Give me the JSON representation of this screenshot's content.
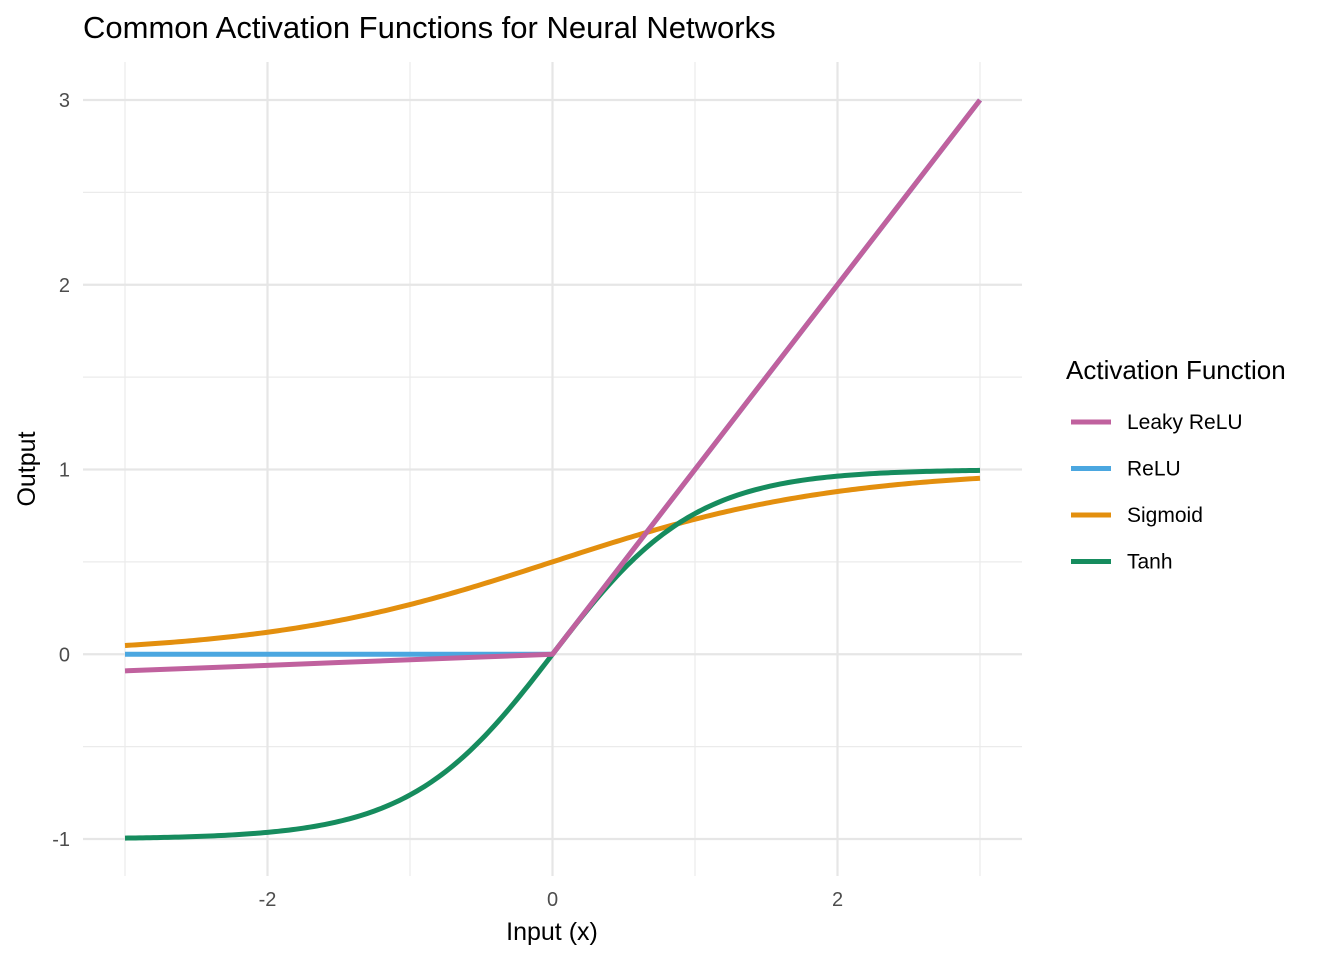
{
  "chart_data": {
    "type": "line",
    "title": "Common Activation Functions for Neural Networks",
    "xlabel": "Input (x)",
    "ylabel": "Output",
    "xlim": [
      -3,
      3
    ],
    "ylim": [
      -1,
      3
    ],
    "x_ticks": [
      {
        "value": -2,
        "label": "-2"
      },
      {
        "value": 0,
        "label": "0"
      },
      {
        "value": 2,
        "label": "2"
      }
    ],
    "y_ticks": [
      {
        "value": -1,
        "label": "-1"
      },
      {
        "value": 0,
        "label": "0"
      },
      {
        "value": 1,
        "label": "1"
      },
      {
        "value": 2,
        "label": "2"
      },
      {
        "value": 3,
        "label": "3"
      }
    ],
    "grid": true,
    "legend": {
      "title": "Activation Function",
      "position": "right"
    },
    "series": [
      {
        "name": "Leaky ReLU",
        "color": "#C0619E",
        "x": [
          -3,
          -2.5,
          -2,
          -1.5,
          -1,
          -0.5,
          0,
          0.5,
          1,
          1.5,
          2,
          2.5,
          3
        ],
        "y": [
          -0.09,
          -0.075,
          -0.06,
          -0.045,
          -0.03,
          -0.015,
          0,
          0.5,
          1,
          1.5,
          2,
          2.5,
          3
        ]
      },
      {
        "name": "ReLU",
        "color": "#4BA7E0",
        "x": [
          -3,
          -2,
          -1,
          0,
          1,
          2,
          3
        ],
        "y": [
          0,
          0,
          0,
          0,
          1,
          2,
          3
        ]
      },
      {
        "name": "Sigmoid",
        "color": "#E38F0E",
        "x": [
          -3,
          -2.5,
          -2,
          -1.5,
          -1,
          -0.5,
          0,
          0.5,
          1,
          1.5,
          2,
          2.5,
          3
        ],
        "y": [
          0.047,
          0.076,
          0.119,
          0.182,
          0.269,
          0.378,
          0.5,
          0.622,
          0.731,
          0.818,
          0.881,
          0.924,
          0.953
        ]
      },
      {
        "name": "Tanh",
        "color": "#168C5E",
        "x": [
          -3,
          -2.5,
          -2,
          -1.5,
          -1,
          -0.75,
          -0.5,
          -0.25,
          0,
          0.25,
          0.5,
          0.75,
          1,
          1.5,
          2,
          2.5,
          3
        ],
        "y": [
          -0.995,
          -0.987,
          -0.964,
          -0.905,
          -0.762,
          -0.635,
          -0.462,
          -0.245,
          0,
          0.245,
          0.462,
          0.635,
          0.762,
          0.905,
          0.964,
          0.987,
          0.995
        ]
      }
    ]
  }
}
